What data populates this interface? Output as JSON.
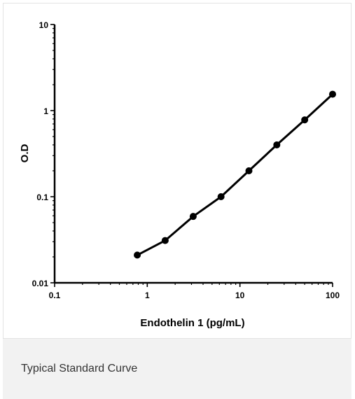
{
  "caption": "Typical Standard Curve",
  "chart_data": {
    "type": "line",
    "title": "",
    "xlabel": "Endothelin 1 (pg/mL)",
    "ylabel": "O.D",
    "x_scale": "log",
    "y_scale": "log",
    "xlim": [
      0.1,
      100
    ],
    "ylim": [
      0.01,
      10
    ],
    "x_ticks": [
      {
        "value": 0.1,
        "label": "0.1"
      },
      {
        "value": 1,
        "label": "1"
      },
      {
        "value": 10,
        "label": "10"
      },
      {
        "value": 100,
        "label": "100"
      }
    ],
    "y_ticks": [
      {
        "value": 0.01,
        "label": "0.01"
      },
      {
        "value": 0.1,
        "label": "0.1"
      },
      {
        "value": 1,
        "label": "1"
      },
      {
        "value": 10,
        "label": "10"
      }
    ],
    "grid": false,
    "series": [
      {
        "x": [
          0.78,
          1.56,
          3.13,
          6.25,
          12.5,
          25,
          50,
          100
        ],
        "y": [
          0.021,
          0.031,
          0.059,
          0.1,
          0.2,
          0.4,
          0.78,
          1.55
        ]
      }
    ],
    "colors": {
      "line": "#000000",
      "marker": "#000000",
      "axis": "#000000"
    }
  }
}
